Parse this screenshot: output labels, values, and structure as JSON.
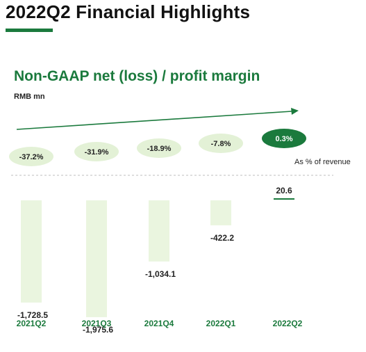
{
  "page": {
    "title": "2022Q2 Financial Highlights"
  },
  "colors": {
    "accent": "#1b7a3d",
    "bubble": "#e3f1d6",
    "bar": "#eaf5df",
    "baseline": "#bdbdbd"
  },
  "chart_data": {
    "type": "bar",
    "title": "Non-GAAP net (loss) / profit margin",
    "ylabel": "RMB mn",
    "categories": [
      "2021Q2",
      "2021Q3",
      "2021Q4",
      "2022Q1",
      "2022Q2"
    ],
    "values": [
      -1728.5,
      -1975.6,
      -1034.1,
      -422.2,
      20.6
    ],
    "value_labels": [
      "-1,728.5",
      "-1,975.6",
      "-1,034.1",
      "-422.2",
      "20.6"
    ],
    "margins": [
      -37.2,
      -31.9,
      -18.9,
      -7.8,
      0.3
    ],
    "margin_labels": [
      "-37.2%",
      "-31.9%",
      "-18.9%",
      "-7.8%",
      "0.3%"
    ],
    "margin_note": "As % of revenue",
    "highlight_index": 4,
    "ylim": [
      -2000,
      100
    ],
    "grid": false,
    "legend": "none"
  }
}
